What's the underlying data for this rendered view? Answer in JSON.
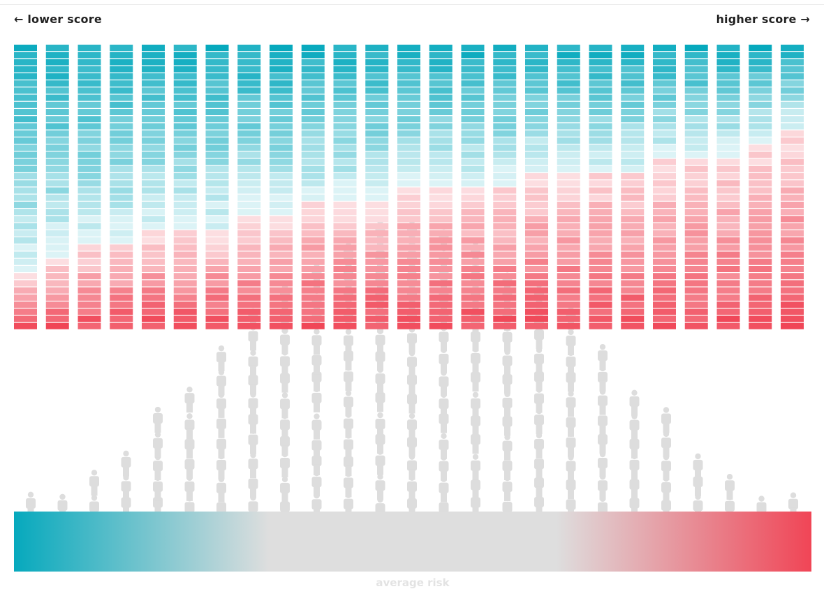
{
  "labels": {
    "lower": "← lower score",
    "higher": "higher score →",
    "bottom": "average risk"
  },
  "colors": {
    "teal": "#06a9bd",
    "red": "#f04556",
    "neutral": "#dedede",
    "person": "#dddddd"
  },
  "chart_data": {
    "type": "bar",
    "description_of_encoding": "25 stacked columns of 40 segments; top share is teal (lower score), bottom share is red (higher score)",
    "columns": [
      {
        "teal_segments": 32,
        "red_segments": 8
      },
      {
        "teal_segments": 30,
        "red_segments": 10
      },
      {
        "teal_segments": 28,
        "red_segments": 12
      },
      {
        "teal_segments": 28,
        "red_segments": 12
      },
      {
        "teal_segments": 26,
        "red_segments": 14
      },
      {
        "teal_segments": 26,
        "red_segments": 14
      },
      {
        "teal_segments": 26,
        "red_segments": 14
      },
      {
        "teal_segments": 24,
        "red_segments": 16
      },
      {
        "teal_segments": 24,
        "red_segments": 16
      },
      {
        "teal_segments": 22,
        "red_segments": 18
      },
      {
        "teal_segments": 22,
        "red_segments": 18
      },
      {
        "teal_segments": 22,
        "red_segments": 18
      },
      {
        "teal_segments": 20,
        "red_segments": 20
      },
      {
        "teal_segments": 20,
        "red_segments": 20
      },
      {
        "teal_segments": 20,
        "red_segments": 20
      },
      {
        "teal_segments": 20,
        "red_segments": 20
      },
      {
        "teal_segments": 18,
        "red_segments": 22
      },
      {
        "teal_segments": 18,
        "red_segments": 22
      },
      {
        "teal_segments": 18,
        "red_segments": 22
      },
      {
        "teal_segments": 18,
        "red_segments": 22
      },
      {
        "teal_segments": 16,
        "red_segments": 24
      },
      {
        "teal_segments": 16,
        "red_segments": 24
      },
      {
        "teal_segments": 16,
        "red_segments": 24
      },
      {
        "teal_segments": 14,
        "red_segments": 26
      },
      {
        "teal_segments": 12,
        "red_segments": 28
      }
    ],
    "people_distribution": [
      1,
      1,
      2,
      3,
      5,
      6,
      8,
      10,
      11,
      12,
      13,
      14,
      14,
      14,
      13,
      12,
      11,
      10,
      8,
      6,
      5,
      3,
      2,
      1,
      1
    ],
    "gradient_stops": [
      {
        "offset": 0.0,
        "color": "#06a9bd"
      },
      {
        "offset": 0.32,
        "color": "#dedede"
      },
      {
        "offset": 0.68,
        "color": "#dedede"
      },
      {
        "offset": 1.0,
        "color": "#f04556"
      }
    ]
  }
}
